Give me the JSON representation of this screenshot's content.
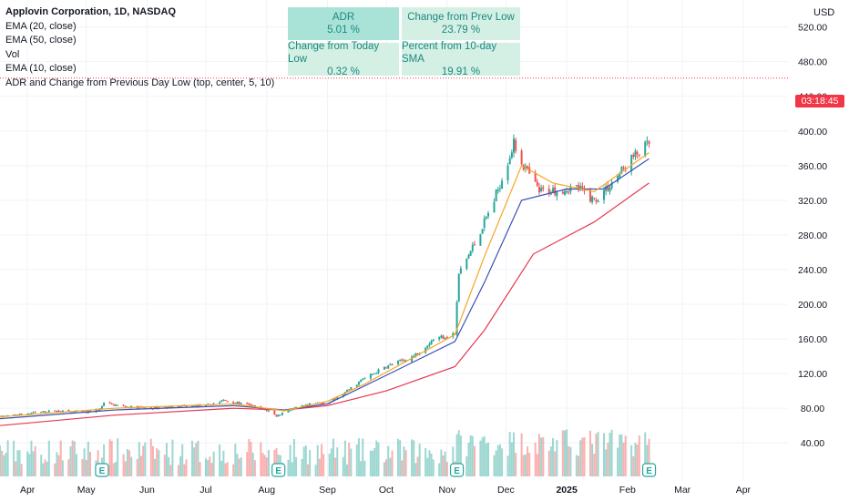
{
  "header": {
    "title": "Applovin Corporation, 1D, NASDAQ",
    "indicators": [
      "EMA (20, close)",
      "EMA (50, close)",
      "Vol",
      "EMA (10, close)",
      "ADR and Change from Previous Day Low (top, center, 5, 10)"
    ]
  },
  "currency": "USD",
  "countdown": "03:18:45",
  "adr_table": [
    {
      "label": "ADR",
      "value": "5.01 %"
    },
    {
      "label": "Change from Prev Low",
      "value": "23.79 %"
    },
    {
      "label": "Change from Today Low",
      "value": "0.32 %"
    },
    {
      "label": "Percent from 10-day SMA",
      "value": "19.91 %"
    }
  ],
  "colors": {
    "up": "#26a69a",
    "down": "#ef5350",
    "ema10": "#f5a623",
    "ema20": "#3f51b5",
    "ema50": "#e53950",
    "current_price": "#f23645"
  },
  "events": [
    {
      "date": "2024-05-09",
      "label": "E"
    },
    {
      "date": "2024-08-07",
      "label": "E"
    },
    {
      "date": "2024-11-06",
      "label": "E"
    },
    {
      "date": "2025-02-12",
      "label": "E"
    }
  ],
  "chart_data": {
    "type": "candlestick",
    "title": "Applovin Corporation, 1D, NASDAQ",
    "x_ticks": [
      "Apr",
      "May",
      "Jun",
      "Jul",
      "Aug",
      "Sep",
      "Oct",
      "Nov",
      "Dec",
      "2025",
      "Feb",
      "Mar",
      "Apr"
    ],
    "y_ticks": [
      40,
      80,
      120,
      160,
      200,
      240,
      280,
      320,
      360,
      400,
      440,
      480,
      520
    ],
    "ylim": [
      15,
      548
    ],
    "current_price": 461,
    "candle_points": [
      [
        "2024-03-18",
        70
      ],
      [
        "2024-04-01",
        74
      ],
      [
        "2024-04-15",
        77
      ],
      [
        "2024-05-01",
        75
      ],
      [
        "2024-05-08",
        79
      ],
      [
        "2024-05-10",
        86
      ],
      [
        "2024-05-20",
        82
      ],
      [
        "2024-06-03",
        80
      ],
      [
        "2024-06-17",
        82
      ],
      [
        "2024-07-01",
        83
      ],
      [
        "2024-07-10",
        89
      ],
      [
        "2024-07-22",
        84
      ],
      [
        "2024-08-02",
        77
      ],
      [
        "2024-08-06",
        71
      ],
      [
        "2024-08-12",
        78
      ],
      [
        "2024-08-23",
        84
      ],
      [
        "2024-09-03",
        88
      ],
      [
        "2024-09-10",
        98
      ],
      [
        "2024-09-18",
        112
      ],
      [
        "2024-10-01",
        128
      ],
      [
        "2024-10-15",
        140
      ],
      [
        "2024-10-25",
        160
      ],
      [
        "2024-11-05",
        166
      ],
      [
        "2024-11-07",
        235
      ],
      [
        "2024-11-15",
        270
      ],
      [
        "2024-11-25",
        320
      ],
      [
        "2024-12-05",
        385
      ],
      [
        "2024-12-10",
        360
      ],
      [
        "2024-12-18",
        330
      ],
      [
        "2025-01-06",
        335
      ],
      [
        "2025-01-15",
        320
      ],
      [
        "2025-01-24",
        340
      ],
      [
        "2025-02-03",
        368
      ],
      [
        "2025-02-12",
        385
      ]
    ],
    "ema10_points": [
      [
        "2024-03-18",
        70
      ],
      [
        "2024-05-15",
        80
      ],
      [
        "2024-07-15",
        85
      ],
      [
        "2024-08-10",
        77
      ],
      [
        "2024-09-01",
        88
      ],
      [
        "2024-09-20",
        108
      ],
      [
        "2024-10-20",
        145
      ],
      [
        "2024-11-05",
        165
      ],
      [
        "2024-11-20",
        255
      ],
      [
        "2024-12-09",
        360
      ],
      [
        "2024-12-25",
        340
      ],
      [
        "2025-01-15",
        330
      ],
      [
        "2025-02-12",
        375
      ]
    ],
    "ema20_points": [
      [
        "2024-03-18",
        68
      ],
      [
        "2024-05-15",
        78
      ],
      [
        "2024-07-15",
        83
      ],
      [
        "2024-08-10",
        78
      ],
      [
        "2024-09-01",
        85
      ],
      [
        "2024-10-01",
        118
      ],
      [
        "2024-11-05",
        157
      ],
      [
        "2024-11-20",
        225
      ],
      [
        "2024-12-09",
        320
      ],
      [
        "2025-01-01",
        333
      ],
      [
        "2025-01-20",
        333
      ],
      [
        "2025-02-12",
        368
      ]
    ],
    "ema50_points": [
      [
        "2024-03-18",
        60
      ],
      [
        "2024-05-15",
        72
      ],
      [
        "2024-07-15",
        80
      ],
      [
        "2024-08-10",
        78
      ],
      [
        "2024-09-01",
        83
      ],
      [
        "2024-10-01",
        100
      ],
      [
        "2024-11-05",
        128
      ],
      [
        "2024-11-20",
        170
      ],
      [
        "2024-12-15",
        258
      ],
      [
        "2025-01-15",
        295
      ],
      [
        "2025-02-12",
        340
      ]
    ]
  }
}
